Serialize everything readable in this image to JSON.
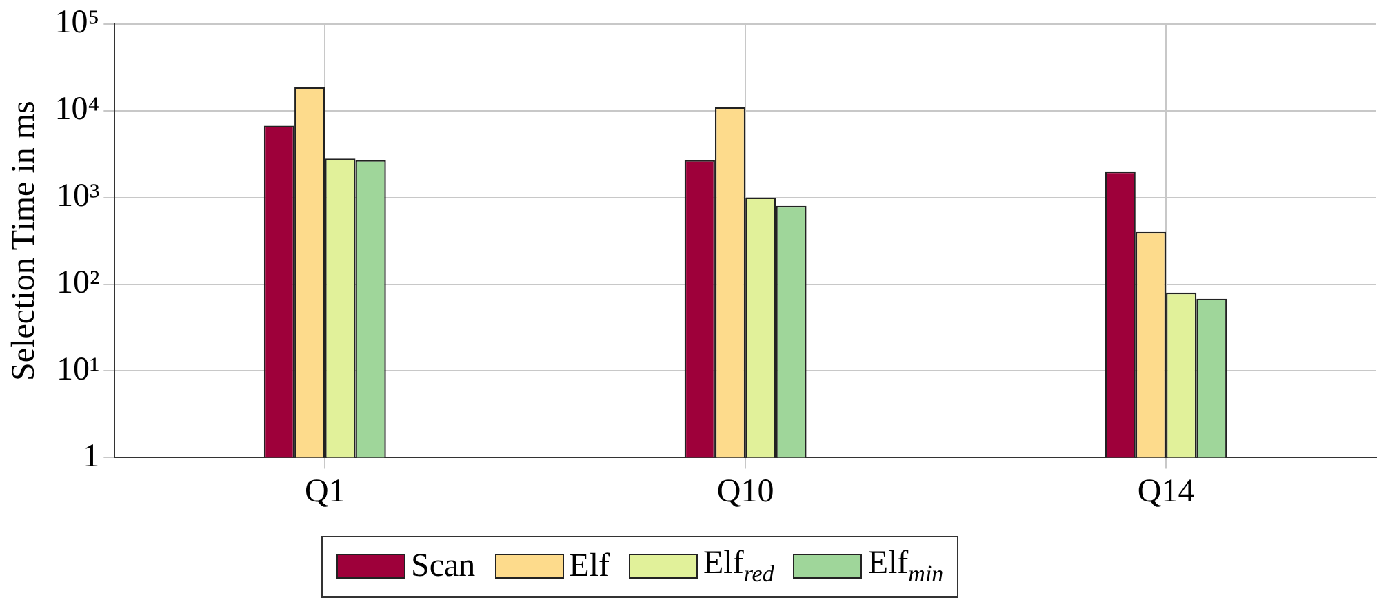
{
  "chart_data": {
    "type": "bar",
    "ylabel": "Selection Time in ms",
    "categories": [
      "Q1",
      "Q10",
      "Q14"
    ],
    "series": [
      {
        "name": "Scan",
        "color": "#9e003a",
        "values": [
          6700,
          2700,
          2000
        ]
      },
      {
        "name": "Elf",
        "color": "#fddb8c",
        "values": [
          18700,
          11000,
          400
        ]
      },
      {
        "name": "Elf$_{red}$",
        "color": "#e1f19a",
        "values": [
          2800,
          1000,
          80
        ]
      },
      {
        "name": "Elf$_{min}$",
        "color": "#9fd69a",
        "values": [
          2700,
          800,
          68
        ]
      }
    ],
    "log": "y",
    "ylim": [
      1,
      100000
    ],
    "yticks": [
      1,
      {
        "value": 10,
        "label": "10¹"
      },
      {
        "value": 100,
        "label": "10²"
      },
      {
        "value": 1000,
        "label": "10³"
      },
      {
        "value": 10000,
        "label": "10⁴"
      },
      {
        "value": 100000,
        "label": "10⁵"
      }
    ],
    "grid": true,
    "legend": "bottom"
  }
}
